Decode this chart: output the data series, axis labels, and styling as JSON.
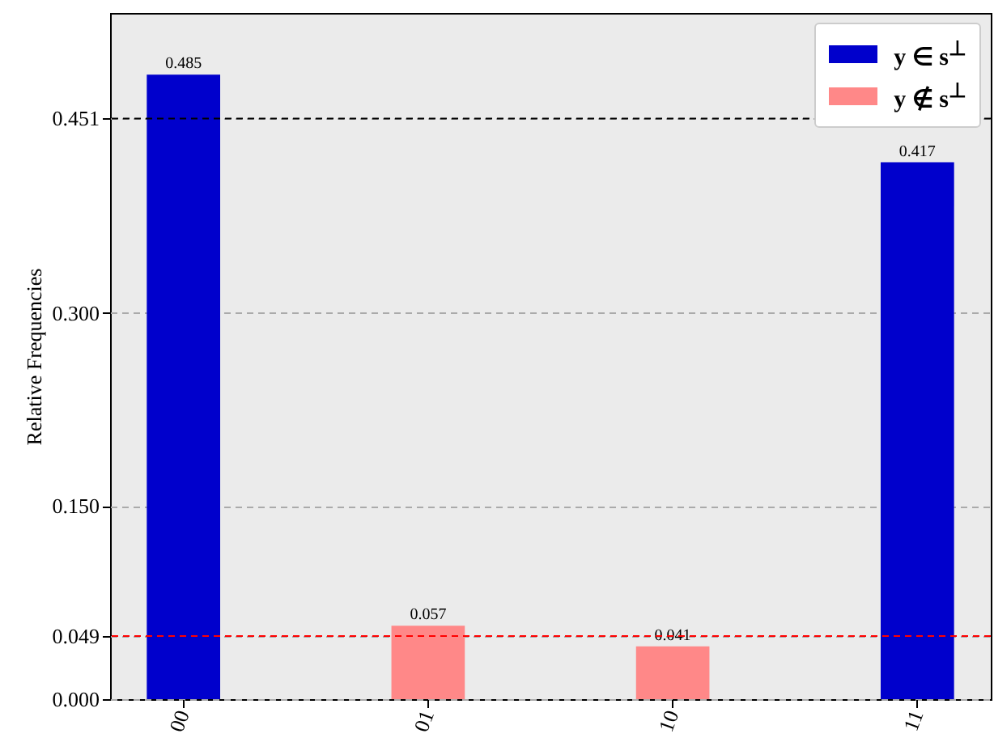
{
  "chart_data": {
    "type": "bar",
    "ylabel": "Relative Frequencies",
    "categories": [
      "00",
      "01",
      "10",
      "11"
    ],
    "series": [
      {
        "name": "y ∈ s$^{⊥}$",
        "color": "#0000cc",
        "values": [
          0.485,
          null,
          null,
          0.417
        ]
      },
      {
        "name": "y ∉ s$^{⊥}$",
        "color": "#ff8888",
        "values": [
          null,
          0.057,
          0.041,
          null
        ]
      }
    ],
    "ylim": [
      0,
      0.533
    ],
    "yticks": [
      {
        "value": 0,
        "label": "0.000"
      },
      0.049,
      {
        "value": 0.15,
        "label": "0.150"
      },
      {
        "value": 0.3,
        "label": "0.300"
      },
      0.451
    ],
    "ref_lines": [
      {
        "axis": "y",
        "value": 0.451,
        "color": "#000000",
        "line_style": "dashed"
      },
      {
        "axis": "y",
        "value": 0.049,
        "color": "#ff0000",
        "line_style": "dashed"
      }
    ],
    "grid": "y",
    "legend": "top right",
    "data_labels": true
  }
}
